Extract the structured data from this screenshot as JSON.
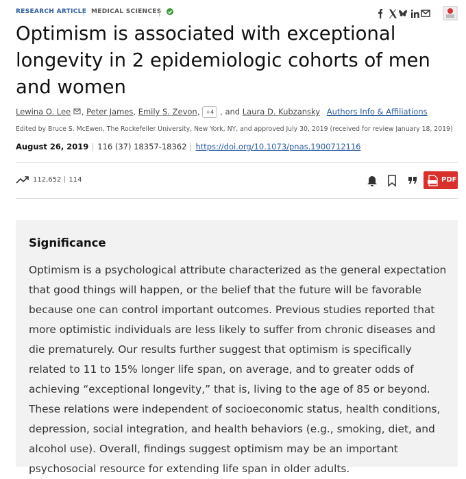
{
  "header": {
    "article_type": "RESEARCH ARTICLE",
    "section": "MEDICAL SCIENCES"
  },
  "title": "Optimism is associated with exceptional longevity in 2 epidemiologic cohorts of men and women",
  "authors": [
    "Lewina O. Lee",
    "Peter James",
    "Emily S. Zevon",
    "Laura D. Kubzansky"
  ],
  "author_separator": ",",
  "more_authors": "+4",
  "author_conjunction": ", and",
  "affiliations_link": "Authors Info & Affiliations",
  "edited_by": "Edited by Bruce S. McEwen, The Rockefeller University, New York, NY, and approved July 30, 2019 (received for review January 18, 2019)",
  "date": "August 26, 2019",
  "citation": "116 (37) 18357-18362",
  "doi": "https://doi.org/10.1073/pnas.1900712116",
  "metrics": {
    "views": "112,652",
    "citations": "114"
  },
  "pdf_button": "PDF",
  "significance": {
    "heading": "Significance",
    "body": "Optimism is a psychological attribute characterized as the general expectation that good things will happen, or the belief that the future will be favorable because one can control important outcomes. Previous studies reported that more optimistic individuals are less likely to suffer from chronic diseases and die prematurely. Our results further suggest that optimism is specifically related to 11 to 15% longer life span, on average, and to greater odds of achieving “exceptional longevity,” that is, living to the age of 85 or beyond. These relations were independent of socioeconomic status, health conditions, depression, social integration, and health behaviors (e.g., smoking, diet, and alcohol use). Overall, findings suggest optimism may be an important psychosocial resource for extending life span in older adults."
  }
}
